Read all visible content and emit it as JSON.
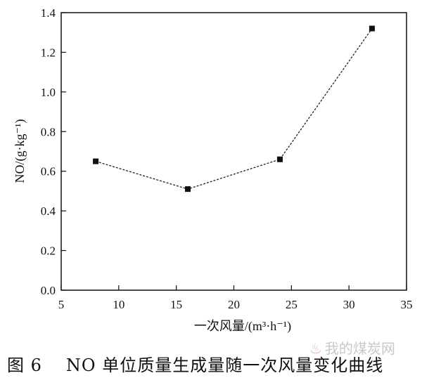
{
  "chart_data": {
    "type": "line",
    "title": "",
    "xlabel": "一次风量/(m³·h⁻¹)",
    "ylabel": "NO/(g·kg⁻¹)",
    "xlim": [
      5,
      35
    ],
    "ylim": [
      0,
      1.4
    ],
    "xticks": [
      "5",
      "10",
      "15",
      "20",
      "25",
      "30",
      "35"
    ],
    "yticks": [
      "0.0",
      "0.2",
      "0.4",
      "0.6",
      "0.8",
      "1.0",
      "1.2",
      "1.4"
    ],
    "series": [
      {
        "x": [
          8,
          16,
          24,
          32
        ],
        "y": [
          0.65,
          0.51,
          0.66,
          1.32
        ]
      }
    ],
    "marker": "square",
    "line_style": "dashed",
    "grid": false,
    "colors": {
      "line": "#222222",
      "marker": "#111111",
      "axis": "#111111"
    }
  },
  "caption": {
    "figure_number": "图 6",
    "text": "NO 单位质量生成量随一次风量变化曲线"
  },
  "watermark": {
    "text": "我的煤炭网",
    "icon": "flame-icon"
  }
}
